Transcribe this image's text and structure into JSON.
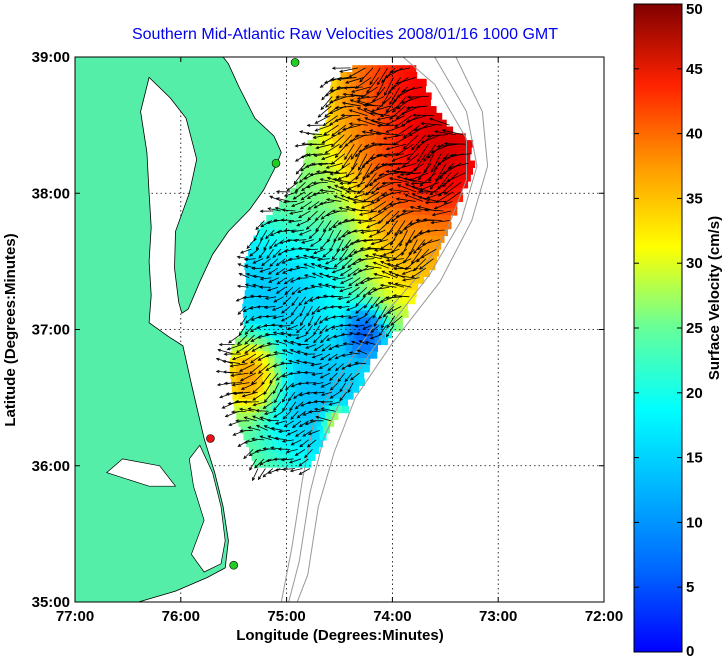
{
  "chart_data": {
    "type": "vector-field",
    "title": "Southern Mid-Atlantic Raw Velocities 2008/01/16 1000 GMT",
    "xlabel": "Longitude (Degrees:Minutes)",
    "ylabel": "Latitude (Degrees:Minutes)",
    "xlim": [
      -77,
      -72
    ],
    "ylim": [
      35,
      39
    ],
    "x_ticks": [
      {
        "value": -77,
        "label": "77:00"
      },
      {
        "value": -76,
        "label": "76:00"
      },
      {
        "value": -75,
        "label": "75:00"
      },
      {
        "value": -74,
        "label": "74:00"
      },
      {
        "value": -73,
        "label": "73:00"
      },
      {
        "value": -72,
        "label": "72:00"
      }
    ],
    "y_ticks": [
      {
        "value": 35,
        "label": "35:00"
      },
      {
        "value": 36,
        "label": "36:00"
      },
      {
        "value": 37,
        "label": "37:00"
      },
      {
        "value": 38,
        "label": "38:00"
      },
      {
        "value": 39,
        "label": "39:00"
      }
    ],
    "grid": true,
    "colorbar": {
      "label": "Surface Velocity (cm/s)",
      "range": [
        0,
        50
      ],
      "ticks": [
        {
          "value": 0,
          "label": "0"
        },
        {
          "value": 5,
          "label": "5"
        },
        {
          "value": 10,
          "label": "10"
        },
        {
          "value": 15,
          "label": "15"
        },
        {
          "value": 20,
          "label": "20"
        },
        {
          "value": 25,
          "label": "25"
        },
        {
          "value": 30,
          "label": "30"
        },
        {
          "value": 35,
          "label": "35"
        },
        {
          "value": 40,
          "label": "40"
        },
        {
          "value": 45,
          "label": "45"
        },
        {
          "value": 50,
          "label": "50"
        }
      ],
      "colormap": "jet"
    },
    "land_color": "#55eea8",
    "arrow_color": "#000000",
    "coverage_rows": [
      {
        "lat": 38.94,
        "lon_min": -74.38,
        "lon_max": -73.82
      },
      {
        "lat": 38.85,
        "lon_min": -74.58,
        "lon_max": -73.74
      },
      {
        "lat": 38.7,
        "lon_min": -74.6,
        "lon_max": -73.66
      },
      {
        "lat": 38.55,
        "lon_min": -74.62,
        "lon_max": -73.56
      },
      {
        "lat": 38.4,
        "lon_min": -74.8,
        "lon_max": -73.3
      },
      {
        "lat": 38.25,
        "lon_min": -74.84,
        "lon_max": -73.26
      },
      {
        "lat": 38.1,
        "lon_min": -74.9,
        "lon_max": -73.3
      },
      {
        "lat": 37.95,
        "lon_min": -75.06,
        "lon_max": -73.42
      },
      {
        "lat": 37.8,
        "lon_min": -75.24,
        "lon_max": -73.48
      },
      {
        "lat": 37.65,
        "lon_min": -75.34,
        "lon_max": -73.54
      },
      {
        "lat": 37.5,
        "lon_min": -75.4,
        "lon_max": -73.6
      },
      {
        "lat": 37.35,
        "lon_min": -75.38,
        "lon_max": -73.76
      },
      {
        "lat": 37.2,
        "lon_min": -75.42,
        "lon_max": -73.86
      },
      {
        "lat": 37.05,
        "lon_min": -75.4,
        "lon_max": -73.94
      },
      {
        "lat": 36.9,
        "lon_min": -75.52,
        "lon_max": -74.16
      },
      {
        "lat": 36.75,
        "lon_min": -75.54,
        "lon_max": -74.24
      },
      {
        "lat": 36.6,
        "lon_min": -75.52,
        "lon_max": -74.34
      },
      {
        "lat": 36.45,
        "lon_min": -75.5,
        "lon_max": -74.46
      },
      {
        "lat": 36.3,
        "lon_min": -75.44,
        "lon_max": -74.62
      },
      {
        "lat": 36.15,
        "lon_min": -75.36,
        "lon_max": -74.72
      },
      {
        "lat": 36.02,
        "lon_min": -75.3,
        "lon_max": -74.8
      }
    ],
    "speed_hotspots": [
      {
        "lon": -73.6,
        "lat": 38.35,
        "value": 50,
        "radius": 0.55
      },
      {
        "lon": -73.9,
        "lat": 38.75,
        "value": 46,
        "radius": 0.45
      },
      {
        "lon": -74.25,
        "lat": 38.5,
        "value": 36,
        "radius": 0.35
      },
      {
        "lon": -73.75,
        "lat": 37.65,
        "value": 36,
        "radius": 0.35
      },
      {
        "lon": -75.35,
        "lat": 36.7,
        "value": 40,
        "radius": 0.2
      },
      {
        "lon": -74.55,
        "lat": 36.33,
        "value": 42,
        "radius": 0.1
      },
      {
        "lon": -75.15,
        "lat": 37.45,
        "value": 14,
        "radius": 0.45
      },
      {
        "lon": -74.7,
        "lat": 36.55,
        "value": 14,
        "radius": 0.4
      },
      {
        "lon": -74.3,
        "lat": 36.98,
        "value": 8,
        "radius": 0.15
      },
      {
        "lon": -75.0,
        "lat": 38.0,
        "value": 26,
        "radius": 0.4
      }
    ],
    "background_speed": 24,
    "flow_direction": "southwest",
    "hf_radar_sites": [
      {
        "lon": -74.92,
        "lat": 38.96,
        "color": "#22cc22"
      },
      {
        "lon": -75.1,
        "lat": 38.22,
        "color": "#22cc22"
      },
      {
        "lon": -75.72,
        "lat": 36.2,
        "color": "#ee1111"
      },
      {
        "lon": -75.5,
        "lat": 35.27,
        "color": "#22cc22"
      }
    ]
  }
}
